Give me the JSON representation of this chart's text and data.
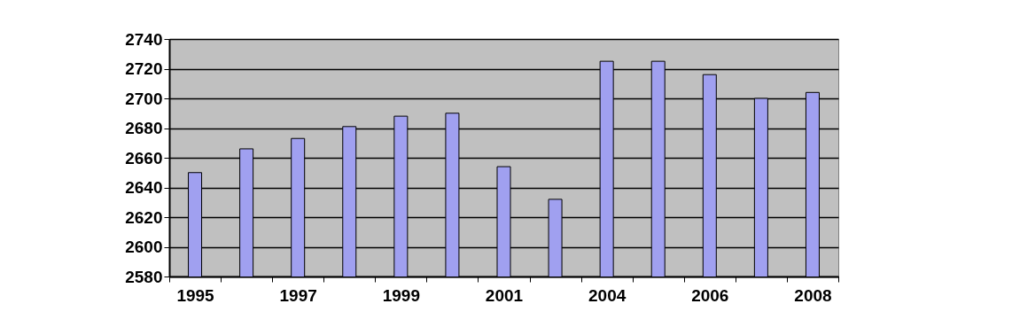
{
  "chart_data": {
    "type": "bar",
    "categories": [
      "1995",
      null,
      "1997",
      null,
      "1999",
      null,
      "2001",
      null,
      "2004",
      null,
      "2006",
      null,
      "2008"
    ],
    "values": [
      2650,
      2666,
      2673,
      2681,
      2688,
      2690,
      2654,
      2632,
      2725,
      2725,
      2716,
      2700,
      2704
    ],
    "color": "#a0a0f0",
    "ylim": [
      2580,
      2740
    ],
    "yticks": [
      2580,
      2600,
      2620,
      2640,
      2660,
      2680,
      2700,
      2720,
      2740
    ],
    "grid": "y"
  }
}
